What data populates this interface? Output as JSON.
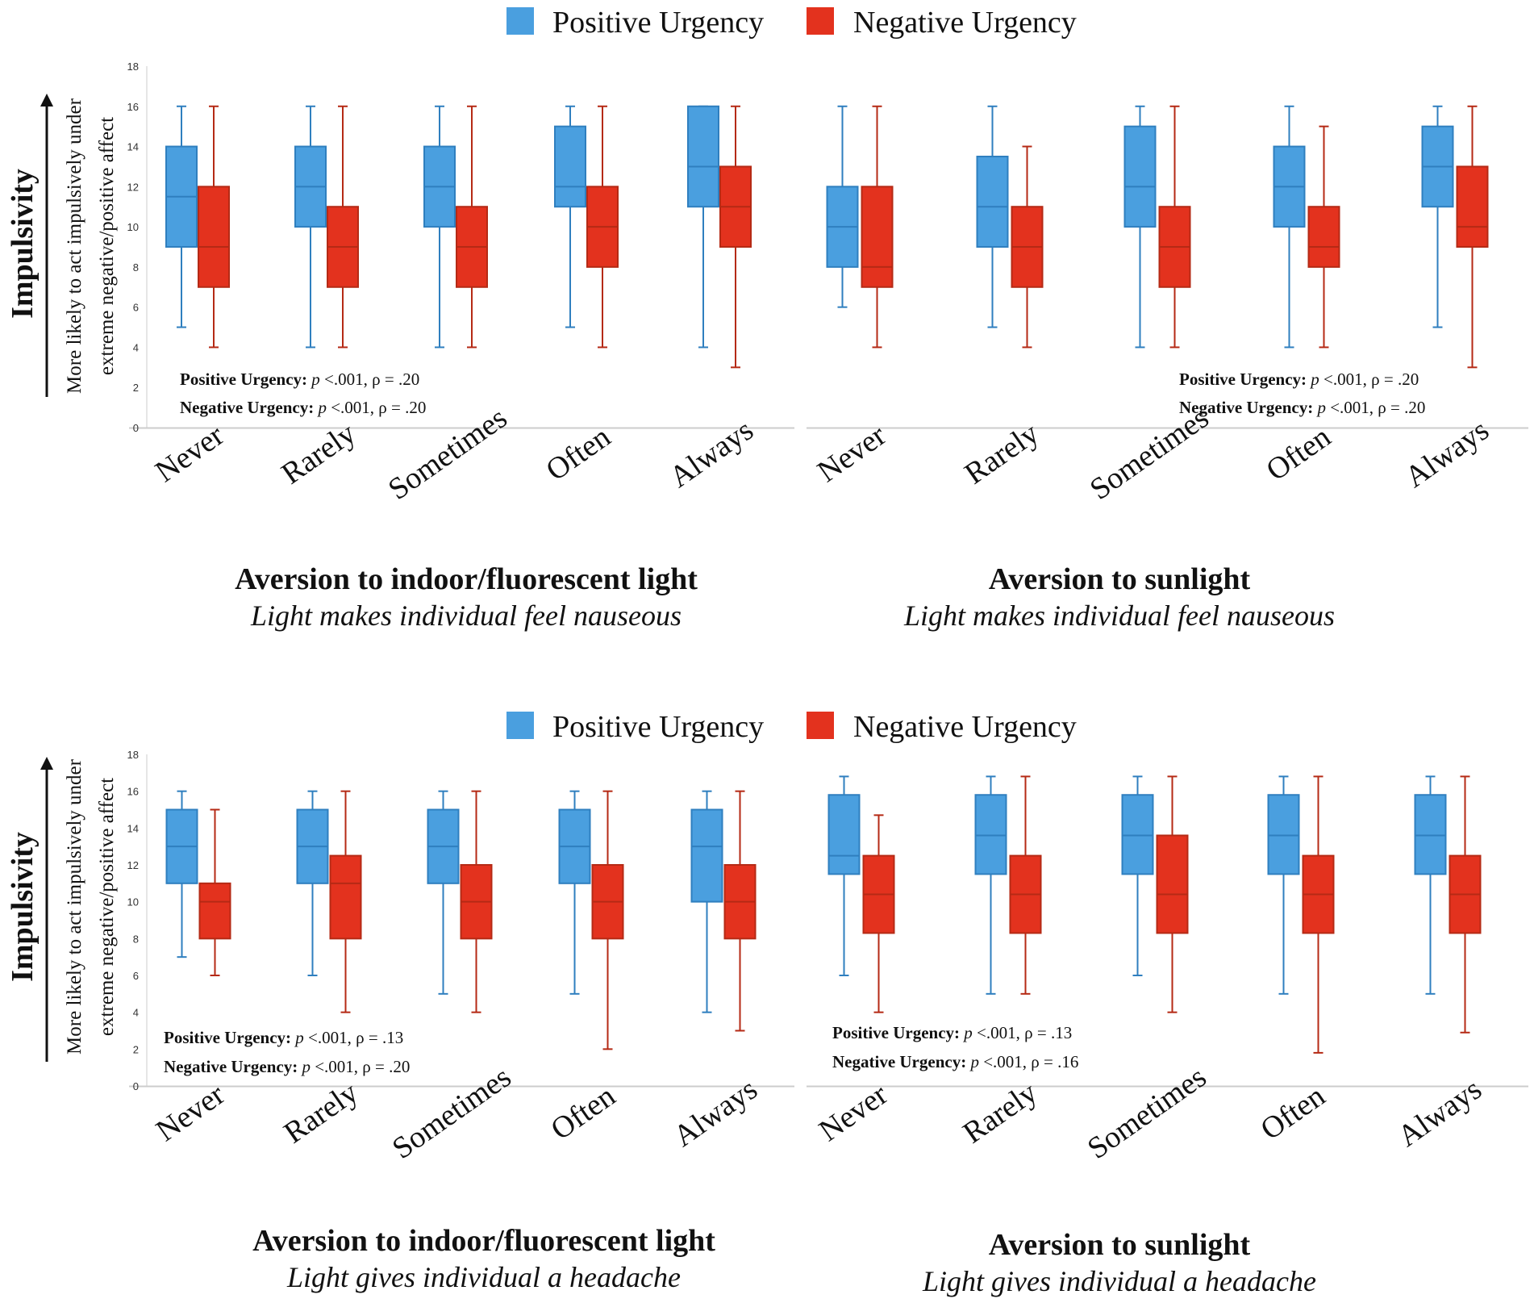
{
  "colors": {
    "positive": "#4a9fdf",
    "positive_stroke": "#2f7fbf",
    "negative": "#e3321e",
    "negative_stroke": "#b52a15",
    "axis": "#cccccc"
  },
  "legend": {
    "positive": "Positive Urgency",
    "negative": "Negative Urgency"
  },
  "y_axis": {
    "main": "Impulsivity",
    "sub_line1": "More likely to act impulsively under",
    "sub_line2": "extreme negative/positive affect"
  },
  "chart_data": [
    {
      "type": "boxplot",
      "title": "Aversion to indoor/fluorescent light",
      "subtitle": "Light makes individual feel nauseous",
      "categories": [
        "Never",
        "Rarely",
        "Sometimes",
        "Often",
        "Always"
      ],
      "ylim": [
        0,
        18
      ],
      "yticks": [
        "0",
        "2",
        "4",
        "6",
        "8",
        "10",
        "12",
        "14",
        "16",
        "18"
      ],
      "stats": [
        {
          "label": "Positive Urgency:",
          "p": "p",
          "text": " <.001, ρ = .20"
        },
        {
          "label": "Negative Urgency:",
          "p": "p",
          "text": " <.001, ρ = .20"
        }
      ],
      "series": [
        {
          "name": "Positive Urgency",
          "boxes": [
            [
              5,
              9,
              11.5,
              14,
              16
            ],
            [
              4,
              10,
              12,
              14,
              16
            ],
            [
              4,
              10,
              12,
              14,
              16
            ],
            [
              5,
              11,
              12,
              15,
              16
            ],
            [
              4,
              11,
              13,
              16,
              16
            ]
          ]
        },
        {
          "name": "Negative Urgency",
          "boxes": [
            [
              4,
              7,
              9,
              12,
              16
            ],
            [
              4,
              7,
              9,
              11,
              16
            ],
            [
              4,
              7,
              9,
              11,
              16
            ],
            [
              4,
              8,
              10,
              12,
              16
            ],
            [
              3,
              9,
              11,
              13,
              16
            ]
          ]
        }
      ]
    },
    {
      "type": "boxplot",
      "title": "Aversion to sunlight",
      "subtitle": "Light makes individual feel nauseous",
      "categories": [
        "Never",
        "Rarely",
        "Sometimes",
        "Often",
        "Always"
      ],
      "ylim": [
        0,
        18
      ],
      "stats": [
        {
          "label": "Positive Urgency:",
          "p": "p",
          "text": " <.001, ρ = .20"
        },
        {
          "label": "Negative Urgency:",
          "p": "p",
          "text": " <.001, ρ = .20"
        }
      ],
      "series": [
        {
          "name": "Positive Urgency",
          "boxes": [
            [
              6,
              8,
              10,
              12,
              16
            ],
            [
              5,
              9,
              11,
              13.5,
              16
            ],
            [
              4,
              10,
              12,
              15,
              16
            ],
            [
              4,
              10,
              12,
              14,
              16
            ],
            [
              5,
              11,
              13,
              15,
              16
            ]
          ]
        },
        {
          "name": "Negative Urgency",
          "boxes": [
            [
              4,
              7,
              8,
              12,
              16
            ],
            [
              4,
              7,
              9,
              11,
              14
            ],
            [
              4,
              7,
              9,
              11,
              16
            ],
            [
              4,
              8,
              9,
              11,
              15
            ],
            [
              3,
              9,
              10,
              13,
              16
            ]
          ]
        }
      ]
    },
    {
      "type": "boxplot",
      "title": "Aversion to indoor/fluorescent light",
      "subtitle": "Light gives individual a headache",
      "categories": [
        "Never",
        "Rarely",
        "Sometimes",
        "Often",
        "Always"
      ],
      "ylim": [
        0,
        18
      ],
      "yticks": [
        "0",
        "2",
        "4",
        "6",
        "8",
        "10",
        "12",
        "14",
        "16",
        "18"
      ],
      "stats": [
        {
          "label": "Positive Urgency:",
          "p": "p",
          "text": " <.001, ρ = .13"
        },
        {
          "label": "Negative Urgency:",
          "p": "p",
          "text": " <.001, ρ = .20"
        }
      ],
      "series": [
        {
          "name": "Positive Urgency",
          "boxes": [
            [
              7,
              11,
              13,
              15,
              16
            ],
            [
              6,
              11,
              13,
              15,
              16
            ],
            [
              5,
              11,
              13,
              15,
              16
            ],
            [
              5,
              11,
              13,
              15,
              16
            ],
            [
              4,
              10,
              13,
              15,
              16
            ]
          ]
        },
        {
          "name": "Negative Urgency",
          "boxes": [
            [
              6,
              8,
              10,
              11,
              15
            ],
            [
              4,
              8,
              11,
              12.5,
              16
            ],
            [
              4,
              8,
              10,
              12,
              16
            ],
            [
              2,
              8,
              10,
              12,
              16
            ],
            [
              3,
              8,
              10,
              12,
              16
            ]
          ]
        }
      ]
    },
    {
      "type": "boxplot",
      "title": "Aversion to sunlight",
      "subtitle": "Light gives individual a headache",
      "categories": [
        "Never",
        "Rarely",
        "Sometimes",
        "Often",
        "Always"
      ],
      "ylim": [
        0,
        18
      ],
      "stats": [
        {
          "label": "Positive Urgency:",
          "p": "p",
          "text": " <.001, ρ = .13"
        },
        {
          "label": "Negative Urgency:",
          "p": "p",
          "text": " <.001, ρ = .16"
        }
      ],
      "series": [
        {
          "name": "Positive Urgency",
          "boxes": [
            [
              6,
              11.5,
              12.5,
              15.8,
              16.8
            ],
            [
              5,
              11.5,
              13.6,
              15.8,
              16.8
            ],
            [
              6,
              11.5,
              13.6,
              15.8,
              16.8
            ],
            [
              5,
              11.5,
              13.6,
              15.8,
              16.8
            ],
            [
              5,
              11.5,
              13.6,
              15.8,
              16.8
            ]
          ]
        },
        {
          "name": "Negative Urgency",
          "boxes": [
            [
              4,
              8.3,
              10.4,
              12.5,
              14.7
            ],
            [
              5,
              8.3,
              10.4,
              12.5,
              16.8
            ],
            [
              4,
              8.3,
              10.4,
              13.6,
              16.8
            ],
            [
              1.8,
              8.3,
              10.4,
              12.5,
              16.8
            ],
            [
              2.9,
              8.3,
              10.4,
              12.5,
              16.8
            ]
          ]
        }
      ]
    }
  ]
}
